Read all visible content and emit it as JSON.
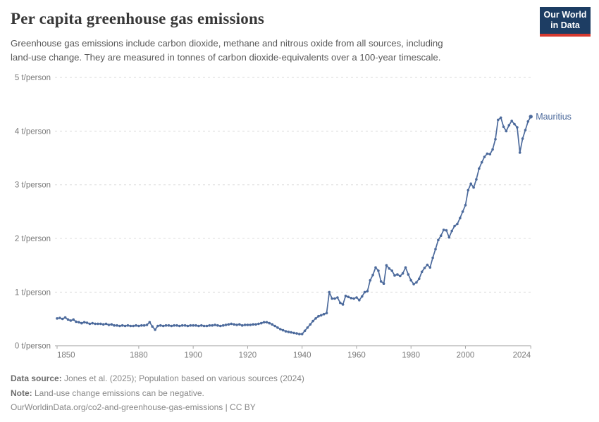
{
  "header": {
    "title": "Per capita greenhouse gas emissions",
    "subtitle_lines": [
      "Greenhouse gas emissions include carbon dioxide, methane and nitrous oxide from all sources, including",
      "land-use change. They are measured in tonnes of carbon dioxide-equivalents over a 100-year timescale."
    ],
    "logo": {
      "line1": "Our World",
      "line2": "in Data",
      "bg_color": "#1d3d63",
      "accent_color": "#d6392f"
    }
  },
  "chart_data": {
    "type": "line",
    "title": "Per capita greenhouse gas emissions",
    "x_start": 1850,
    "x_step": 1,
    "x_end": 2024,
    "xticks": [
      1850,
      1880,
      1900,
      1920,
      1940,
      1960,
      1980,
      2000,
      2024
    ],
    "yticks": [
      0,
      1,
      2,
      3,
      4,
      5
    ],
    "ylim": [
      0,
      5
    ],
    "y_unit": "t/person",
    "grid": "horizontal-dashed",
    "legend_position": "end-of-line-label",
    "series": [
      {
        "name": "Mauritius",
        "color": "#4c6a9c",
        "values": [
          0.51,
          0.52,
          0.5,
          0.53,
          0.49,
          0.47,
          0.49,
          0.45,
          0.44,
          0.42,
          0.44,
          0.43,
          0.41,
          0.42,
          0.41,
          0.41,
          0.41,
          0.4,
          0.41,
          0.39,
          0.4,
          0.38,
          0.38,
          0.37,
          0.38,
          0.37,
          0.38,
          0.37,
          0.37,
          0.38,
          0.37,
          0.38,
          0.38,
          0.39,
          0.44,
          0.36,
          0.3,
          0.37,
          0.38,
          0.37,
          0.38,
          0.38,
          0.37,
          0.38,
          0.38,
          0.37,
          0.38,
          0.38,
          0.37,
          0.38,
          0.38,
          0.38,
          0.37,
          0.38,
          0.37,
          0.37,
          0.38,
          0.38,
          0.39,
          0.38,
          0.37,
          0.38,
          0.39,
          0.4,
          0.41,
          0.4,
          0.39,
          0.4,
          0.38,
          0.39,
          0.39,
          0.39,
          0.4,
          0.4,
          0.41,
          0.42,
          0.44,
          0.44,
          0.42,
          0.4,
          0.37,
          0.34,
          0.31,
          0.29,
          0.27,
          0.26,
          0.25,
          0.24,
          0.23,
          0.22,
          0.22,
          0.28,
          0.34,
          0.4,
          0.46,
          0.51,
          0.55,
          0.57,
          0.59,
          0.61,
          1.0,
          0.88,
          0.88,
          0.9,
          0.8,
          0.77,
          0.93,
          0.91,
          0.89,
          0.88,
          0.9,
          0.85,
          0.92,
          1.0,
          1.02,
          1.22,
          1.32,
          1.46,
          1.4,
          1.2,
          1.16,
          1.5,
          1.44,
          1.4,
          1.31,
          1.33,
          1.3,
          1.35,
          1.46,
          1.33,
          1.22,
          1.15,
          1.18,
          1.25,
          1.38,
          1.45,
          1.51,
          1.46,
          1.64,
          1.8,
          1.97,
          2.05,
          2.16,
          2.15,
          2.02,
          2.14,
          2.23,
          2.27,
          2.38,
          2.5,
          2.62,
          2.9,
          3.02,
          2.95,
          3.1,
          3.3,
          3.42,
          3.52,
          3.58,
          3.57,
          3.66,
          3.85,
          4.21,
          4.25,
          4.08,
          4.0,
          4.11,
          4.19,
          4.13,
          4.07,
          3.6,
          3.86,
          4.02,
          4.18,
          4.27
        ]
      }
    ]
  },
  "footer": {
    "source_label": "Data source:",
    "source_text": " Jones et al. (2025); Population based on various sources (2024)",
    "note_label": "Note:",
    "note_text": " Land-use change emissions can be negative.",
    "license_text": "OurWorldinData.org/co2-and-greenhouse-gas-emissions | CC BY"
  },
  "colors": {
    "line": "#4c6a9c",
    "grid": "#dcdcdc",
    "axis": "#a5a5a5",
    "tick_text": "#7a7a7a"
  }
}
